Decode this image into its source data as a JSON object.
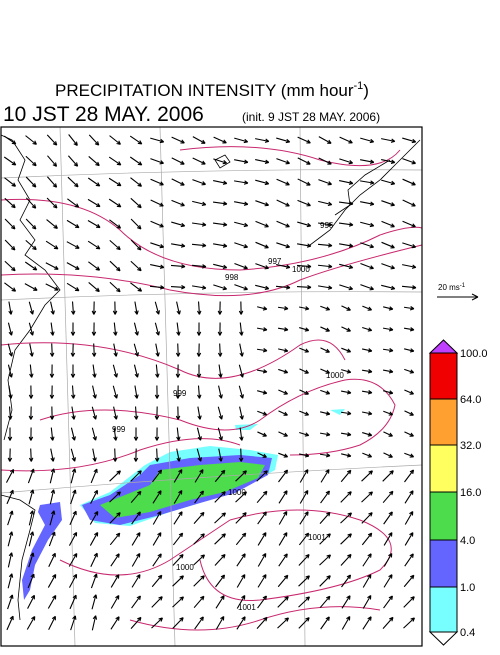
{
  "header": {
    "title": "PRECIPITATION INTENSITY (mm hour",
    "title_sup": "-1",
    "title_end": ")",
    "valid_time": "10 JST 28 MAY. 2006",
    "init_time": "(init. 9 JST 28 MAY. 2006)"
  },
  "scale": {
    "label": "20 ms",
    "sup": "-1"
  },
  "colorbar": {
    "labels": [
      "100.0",
      "64.0",
      "32.0",
      "16.0",
      "4.0",
      "1.0",
      "0.4"
    ]
  },
  "contour_labels": [
    "996",
    "997",
    "998",
    "999",
    "999",
    "1000",
    "1000",
    "1000",
    "1001",
    "1001",
    "1000"
  ]
}
